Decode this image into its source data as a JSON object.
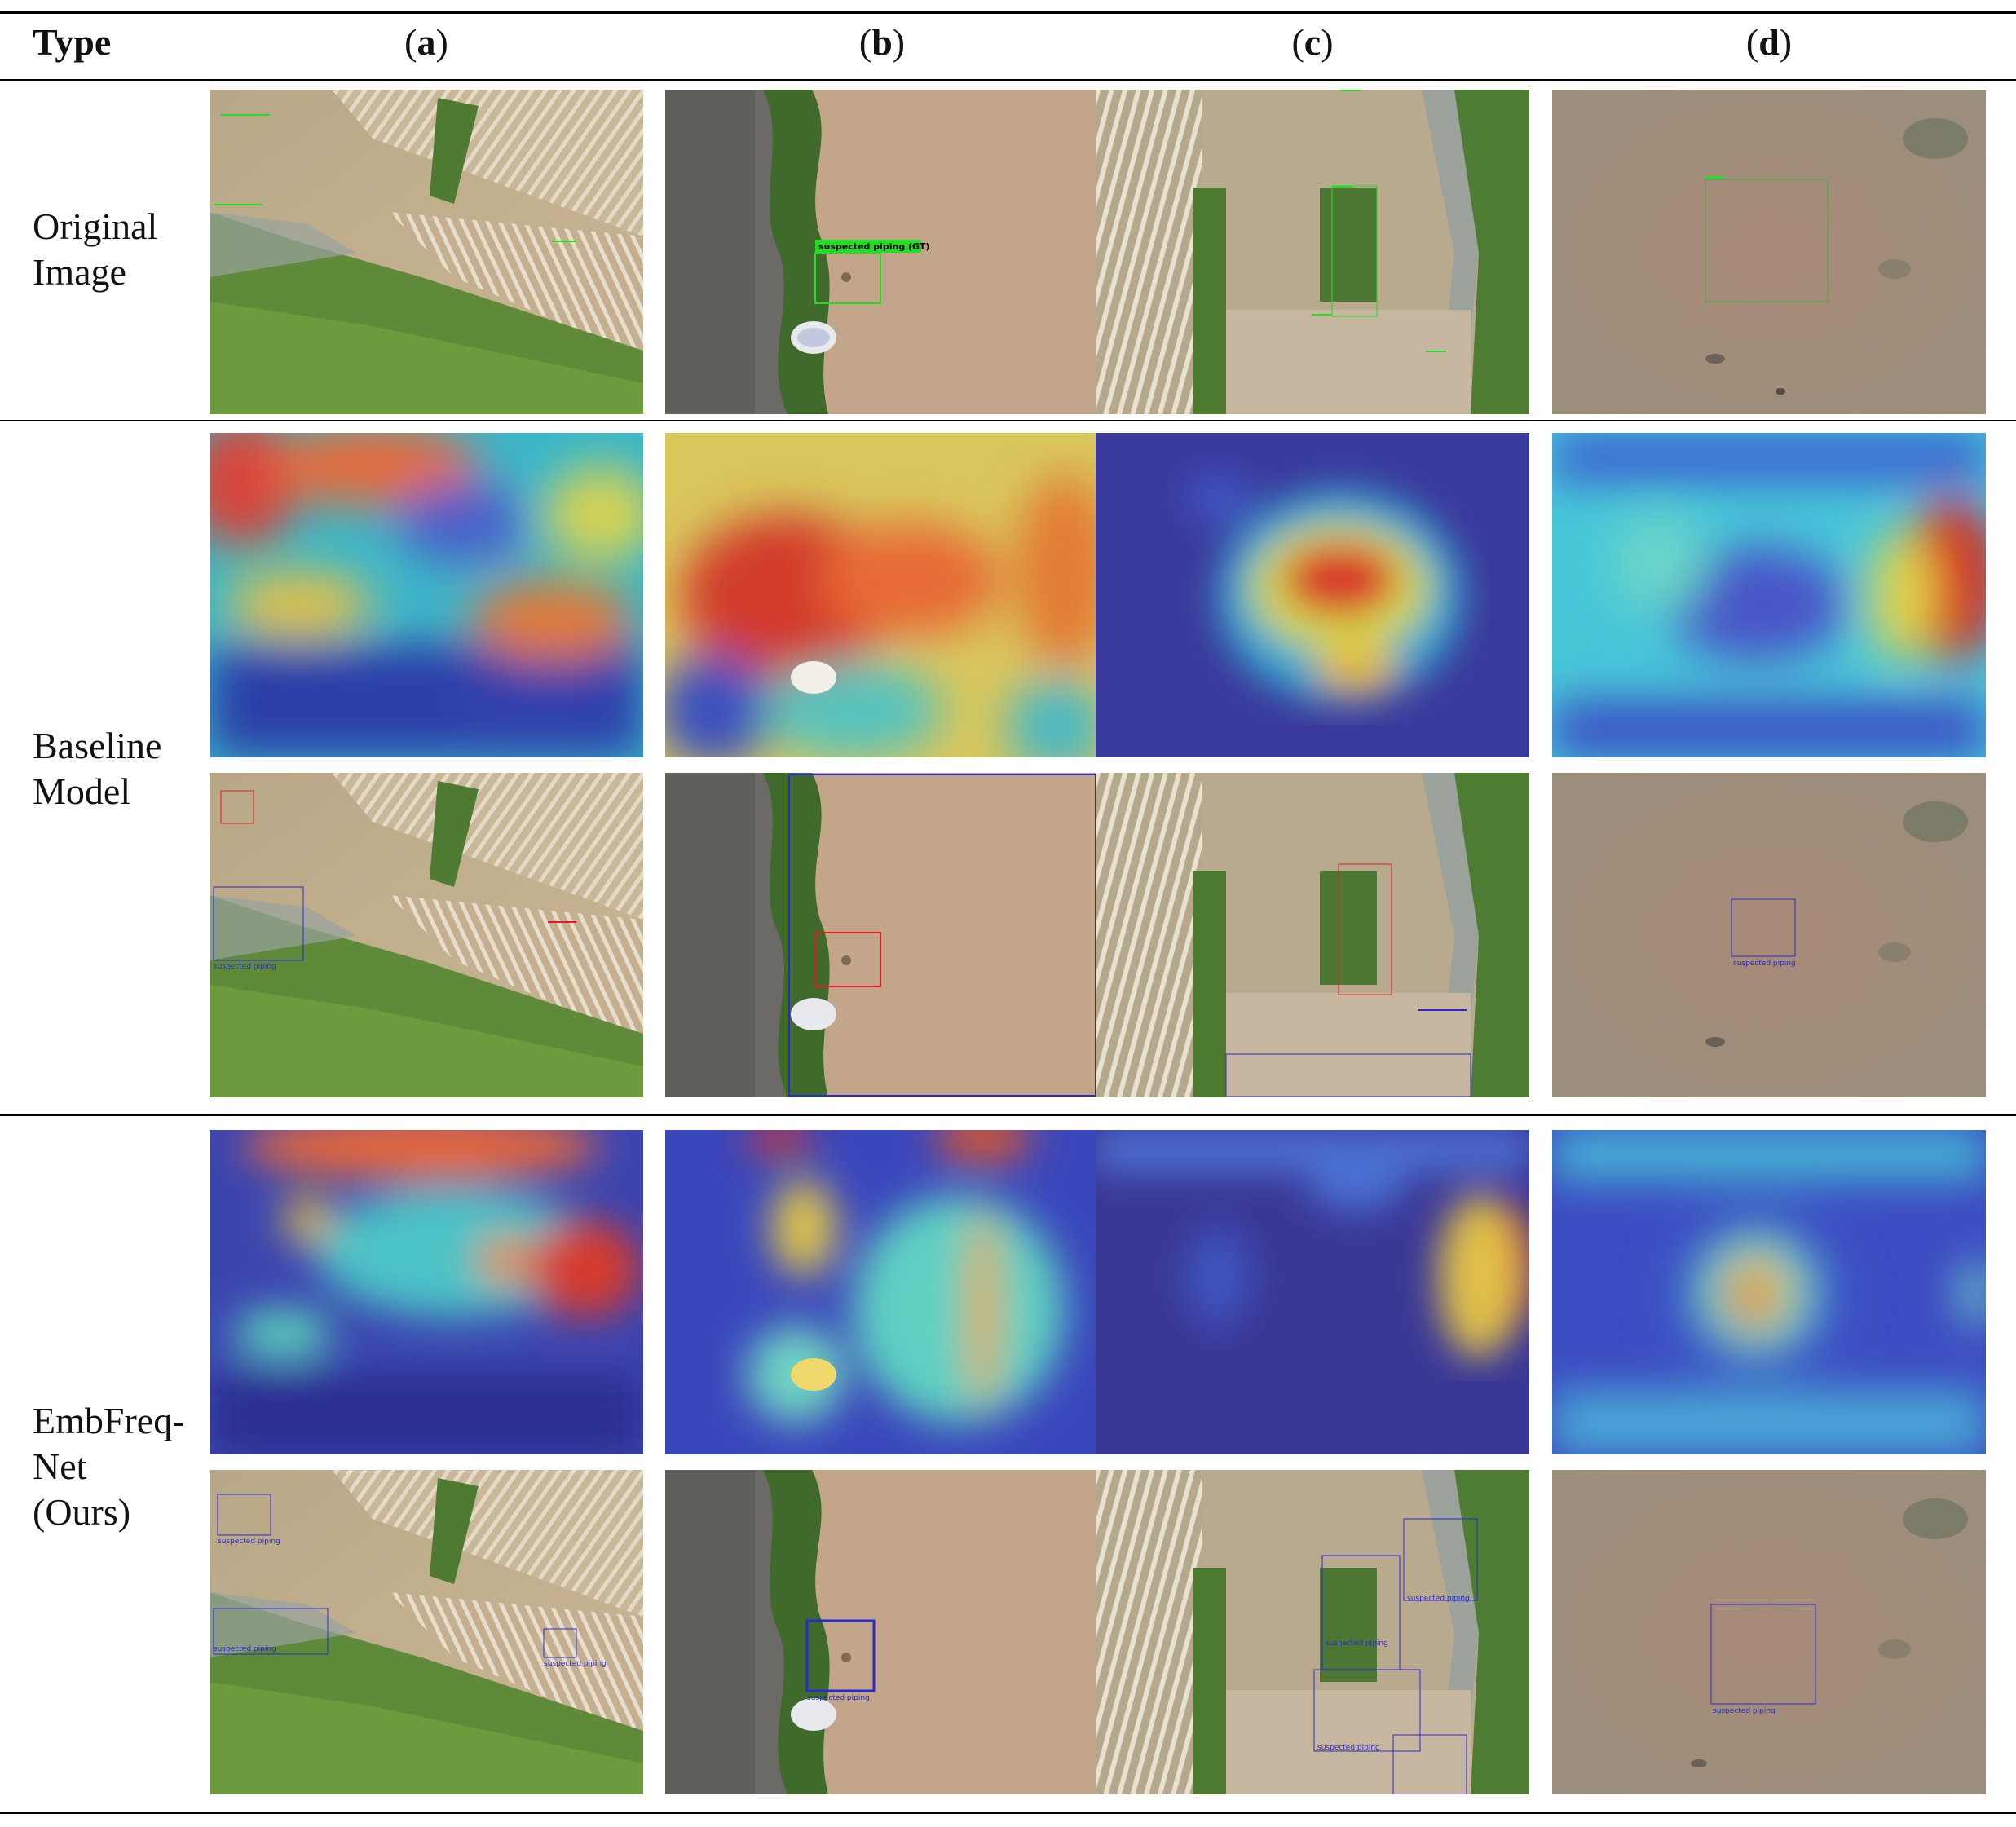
{
  "header": {
    "type_label": "Type",
    "columns": [
      {
        "open": "(",
        "letter": "a",
        "close": ")"
      },
      {
        "open": "(",
        "letter": "b",
        "close": ")"
      },
      {
        "open": "(",
        "letter": "c",
        "close": ")"
      },
      {
        "open": "(",
        "letter": "d",
        "close": ")"
      }
    ]
  },
  "rows": {
    "original": {
      "line1": "Original",
      "line2": "Image"
    },
    "baseline": {
      "line1": "Baseline",
      "line2": "Model"
    },
    "ours": {
      "line1": "EmbFreq-",
      "line2": "Net",
      "line3": "(Ours)"
    }
  },
  "annotations": {
    "gt_label": "suspected piping (GT)",
    "pred_label": "suspected piping"
  },
  "colors": {
    "gt_box": "#22dd22",
    "baseline_box_red": "#e02020",
    "pred_box_blue": "#2a2ad0"
  }
}
